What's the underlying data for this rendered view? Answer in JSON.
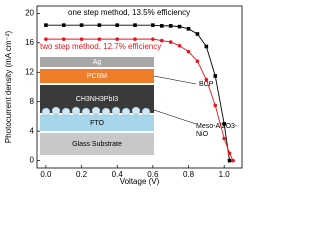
{
  "chart_data": {
    "type": "line",
    "x_label": "Voltage (V)",
    "y_label": "Photocurrent density (mA cm⁻²)",
    "x": [
      0,
      0.1,
      0.2,
      0.3,
      0.4,
      0.5,
      0.6,
      0.65,
      0.7,
      0.75,
      0.8,
      0.85,
      0.9,
      0.95,
      1.0,
      1.03,
      1.05
    ],
    "series": [
      {
        "name": "one step method, 13.5% efficiency",
        "color": "#000000",
        "marker": "square",
        "values": [
          18.4,
          18.4,
          18.4,
          18.4,
          18.4,
          18.4,
          18.4,
          18.3,
          18.3,
          18.2,
          17.9,
          17.2,
          15.5,
          11.5,
          5,
          0,
          null
        ]
      },
      {
        "name": "two step method, 12.7% efficiency",
        "color": "#e8141c",
        "marker": "circle",
        "values": [
          16.5,
          16.5,
          16.5,
          16.5,
          16.5,
          16.5,
          16.5,
          16.3,
          16.1,
          15.6,
          14.8,
          13.5,
          11,
          7.5,
          3,
          1,
          0
        ]
      }
    ],
    "xlim": [
      -0.05,
      1.1
    ],
    "ylim": [
      -1,
      21
    ],
    "xticks": [
      {
        "value": 0,
        "label": "0.0"
      },
      0.2,
      0.4,
      0.6,
      0.8,
      {
        "value": 1,
        "label": "1.0"
      }
    ],
    "yticks": [
      0,
      4,
      8,
      12,
      16,
      20
    ],
    "inset_layers": [
      "Ag",
      "PCBM",
      "CH3NH3PbI3",
      "FTO",
      "Glass Substrate"
    ],
    "inset_side_labels": [
      "BCP",
      "Meso-Al2O3-",
      "NiO"
    ]
  }
}
